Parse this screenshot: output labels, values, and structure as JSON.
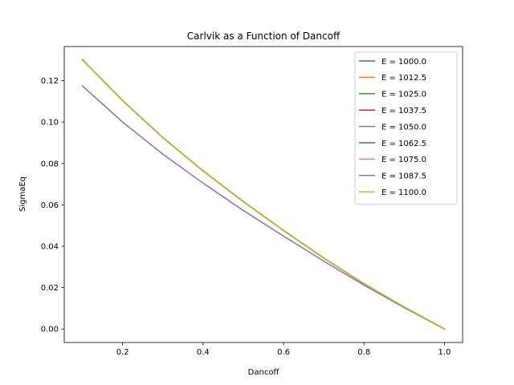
{
  "chart_data": {
    "type": "line",
    "title": "Carlvik as a Function of Dancoff",
    "xlabel": "Dancoff",
    "ylabel": "SigmaEq",
    "xlim": [
      0.055,
      1.045
    ],
    "ylim": [
      -0.0065,
      0.1365
    ],
    "xticks": [
      0.2,
      0.4,
      0.6,
      0.8,
      1.0
    ],
    "xtick_labels": [
      "0.2",
      "0.4",
      "0.6",
      "0.8",
      "1.0"
    ],
    "yticks": [
      0.0,
      0.02,
      0.04,
      0.06,
      0.08,
      0.1,
      0.12
    ],
    "ytick_labels": [
      "0.00",
      "0.02",
      "0.04",
      "0.06",
      "0.08",
      "0.10",
      "0.12"
    ],
    "grid": false,
    "legend_position": "top-right",
    "x": [
      0.1,
      0.2,
      0.3,
      0.4,
      0.5,
      0.6,
      0.7,
      0.8,
      0.9,
      1.0
    ],
    "series": [
      {
        "name": "E = 1000.0",
        "color": "#1f77b4",
        "values": [
          0.1302,
          0.1104,
          0.0925,
          0.0764,
          0.0616,
          0.0476,
          0.0343,
          0.0219,
          0.0106,
          0.0
        ]
      },
      {
        "name": "E = 1012.5",
        "color": "#ff7f0e",
        "values": [
          0.1302,
          0.1104,
          0.0925,
          0.0764,
          0.0616,
          0.0476,
          0.0343,
          0.0219,
          0.0106,
          0.0
        ]
      },
      {
        "name": "E = 1025.0",
        "color": "#2ca02c",
        "values": [
          0.1302,
          0.1104,
          0.0925,
          0.0764,
          0.0616,
          0.0476,
          0.0343,
          0.0219,
          0.0106,
          0.0
        ]
      },
      {
        "name": "E = 1037.5",
        "color": "#d62728",
        "values": [
          0.1302,
          0.1104,
          0.0925,
          0.0764,
          0.0616,
          0.0476,
          0.0343,
          0.0219,
          0.0106,
          0.0
        ]
      },
      {
        "name": "E = 1050.0",
        "color": "#9467bd",
        "values": [
          0.1175,
          0.1,
          0.0845,
          0.0705,
          0.0573,
          0.0449,
          0.0328,
          0.0212,
          0.0103,
          0.0
        ]
      },
      {
        "name": "E = 1062.5",
        "color": "#8c564b",
        "values": [
          0.1302,
          0.1104,
          0.0925,
          0.0764,
          0.0616,
          0.0476,
          0.0343,
          0.0219,
          0.0106,
          0.0
        ]
      },
      {
        "name": "E = 1075.0",
        "color": "#e377c2",
        "values": [
          0.1302,
          0.1104,
          0.0925,
          0.0764,
          0.0616,
          0.0476,
          0.0343,
          0.0219,
          0.0106,
          0.0
        ]
      },
      {
        "name": "E = 1087.5",
        "color": "#7f7f7f",
        "values": [
          0.1302,
          0.1104,
          0.0925,
          0.0764,
          0.0616,
          0.0476,
          0.0343,
          0.0219,
          0.0106,
          0.0
        ]
      },
      {
        "name": "E = 1100.0",
        "color": "#bcbd22",
        "values": [
          0.1302,
          0.1104,
          0.0925,
          0.0764,
          0.0616,
          0.0476,
          0.0343,
          0.0219,
          0.0106,
          0.0
        ]
      }
    ]
  }
}
